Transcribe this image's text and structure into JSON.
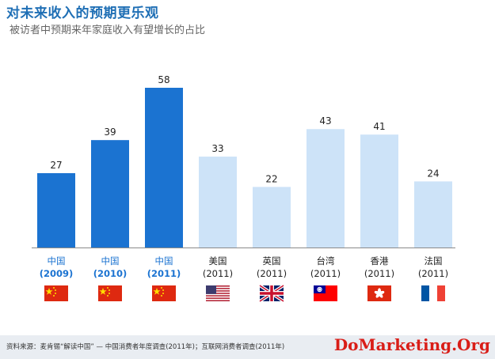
{
  "header": {
    "title": "对未来收入的预期更乐观",
    "subtitle": "被访者中预期来年家庭收入有望增长的占比"
  },
  "footer": {
    "source": "资料来源：麦肯锡“解读中国” — 中国消费者年度调查(2011年)；互联网消费者调查(2011年)",
    "brand": "DoMarketing.Org"
  },
  "colors": {
    "china": "#1b73d1",
    "other": "#cde3f8",
    "china_text": "#1b73d1",
    "other_text": "#222222"
  },
  "chart_data": {
    "type": "bar",
    "title": "对未来收入的预期更乐观",
    "subtitle": "被访者中预期来年家庭收入有望增长的占比",
    "categories": [
      {
        "region": "中国",
        "year": "(2009)",
        "flag": "china-flag-icon",
        "highlight": true
      },
      {
        "region": "中国",
        "year": "(2010)",
        "flag": "china-flag-icon",
        "highlight": true
      },
      {
        "region": "中国",
        "year": "(2011)",
        "flag": "china-flag-icon",
        "highlight": true
      },
      {
        "region": "美国",
        "year": "(2011)",
        "flag": "usa-flag-icon",
        "highlight": false
      },
      {
        "region": "英国",
        "year": "(2011)",
        "flag": "uk-flag-icon",
        "highlight": false
      },
      {
        "region": "台湾",
        "year": "(2011)",
        "flag": "taiwan-flag-icon",
        "highlight": false
      },
      {
        "region": "香港",
        "year": "(2011)",
        "flag": "hongkong-flag-icon",
        "highlight": false
      },
      {
        "region": "法国",
        "year": "(2011)",
        "flag": "france-flag-icon",
        "highlight": false
      }
    ],
    "values": [
      27,
      39,
      58,
      33,
      22,
      43,
      41,
      24
    ],
    "ylim": [
      0,
      58
    ],
    "grid": false,
    "legend": "none"
  }
}
